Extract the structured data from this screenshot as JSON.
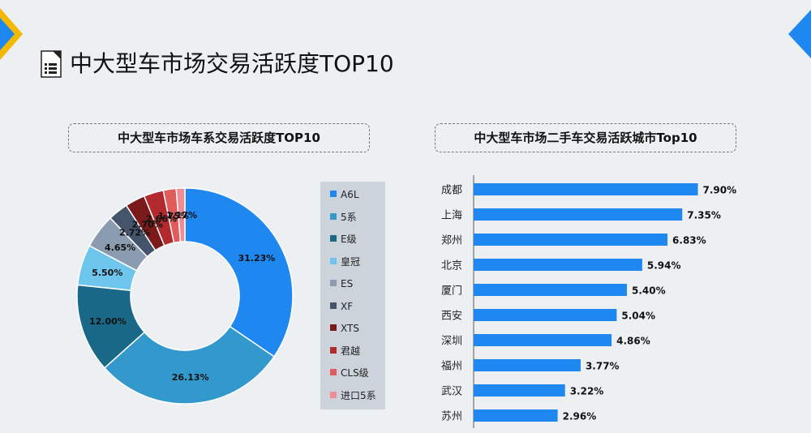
{
  "page": {
    "title": "中大型车市场交易活跃度TOP10",
    "accent_color": "#1e88f0",
    "corner_colors": [
      "#f5b800",
      "#1e88f0"
    ]
  },
  "donut": {
    "box_title": "中大型车市场车系交易活跃度TOP10"
  },
  "bars": {
    "box_title": "中大型车市场二手车交易活跃城市Top10"
  },
  "chart_data": [
    {
      "type": "pie",
      "variant": "donut",
      "title": "中大型车市场车系交易活跃度TOP10",
      "categories": [
        "A6L",
        "5系",
        "E级",
        "皇冠",
        "ES",
        "XF",
        "XTS",
        "君越",
        "CLS级",
        "进口5系"
      ],
      "values": [
        31.23,
        26.13,
        12.0,
        5.5,
        4.65,
        2.72,
        2.7,
        2.66,
        1.75,
        1.17
      ],
      "labels": [
        "31.23%",
        "26.13%",
        "12.00%",
        "5.50%",
        "4.65%",
        "2.72%",
        "2.70%",
        "2.66%",
        "1.75%",
        "1.17%"
      ],
      "colors": [
        "#1e88f0",
        "#3399cc",
        "#1a6887",
        "#6fc6ec",
        "#8b9cb0",
        "#44546a",
        "#7a1a1a",
        "#b22a2e",
        "#e05c5c",
        "#f08c94"
      ],
      "legend": "right"
    },
    {
      "type": "bar",
      "orientation": "horizontal",
      "title": "中大型车市场二手车交易活跃城市Top10",
      "categories": [
        "成都",
        "上海",
        "郑州",
        "北京",
        "厦门",
        "西安",
        "深圳",
        "福州",
        "武汉",
        "苏州"
      ],
      "values": [
        7.9,
        7.35,
        6.83,
        5.94,
        5.4,
        5.04,
        4.86,
        3.77,
        3.22,
        2.96
      ],
      "labels": [
        "7.90%",
        "7.35%",
        "6.83%",
        "5.94%",
        "5.40%",
        "5.04%",
        "4.86%",
        "3.77%",
        "3.22%",
        "2.96%"
      ],
      "color": "#1e88f0",
      "xlim": [
        0,
        8
      ]
    }
  ]
}
